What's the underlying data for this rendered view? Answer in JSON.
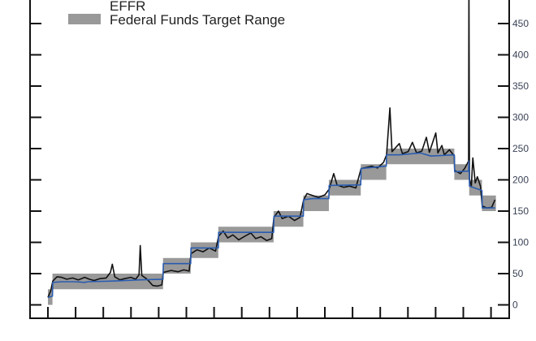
{
  "chart_data": {
    "type": "line",
    "title": "",
    "xlabel": "",
    "ylabel": "",
    "ylim": [
      0,
      500
    ],
    "y_ticks": [
      "0",
      "50",
      "100",
      "150",
      "200",
      "250",
      "300",
      "350",
      "400",
      "450"
    ],
    "y_axis_side": "right",
    "x_range": [
      "2015-12-01",
      "2019-12-15"
    ],
    "x_tick_interval": "quarterly",
    "grid": false,
    "legend": {
      "placement": "top-left",
      "entries": [
        "EFFR",
        "Federal Funds Target Range"
      ]
    },
    "target_range": [
      {
        "start": "2015-12-01",
        "end": "2015-12-16",
        "lower": 0,
        "upper": 25
      },
      {
        "start": "2015-12-16",
        "end": "2016-12-14",
        "lower": 25,
        "upper": 50
      },
      {
        "start": "2016-12-14",
        "end": "2017-03-15",
        "lower": 50,
        "upper": 75
      },
      {
        "start": "2017-03-15",
        "end": "2017-06-14",
        "lower": 75,
        "upper": 100
      },
      {
        "start": "2017-06-14",
        "end": "2017-12-13",
        "lower": 100,
        "upper": 125
      },
      {
        "start": "2017-12-13",
        "end": "2018-03-21",
        "lower": 125,
        "upper": 150
      },
      {
        "start": "2018-03-21",
        "end": "2018-06-13",
        "lower": 150,
        "upper": 175
      },
      {
        "start": "2018-06-13",
        "end": "2018-09-26",
        "lower": 175,
        "upper": 200
      },
      {
        "start": "2018-09-26",
        "end": "2018-12-19",
        "lower": 200,
        "upper": 225
      },
      {
        "start": "2018-12-19",
        "end": "2019-07-31",
        "lower": 225,
        "upper": 250
      },
      {
        "start": "2019-07-31",
        "end": "2019-09-18",
        "lower": 200,
        "upper": 225
      },
      {
        "start": "2019-09-18",
        "end": "2019-10-30",
        "lower": 175,
        "upper": 200
      },
      {
        "start": "2019-10-30",
        "end": "2019-12-15",
        "lower": 150,
        "upper": 175
      }
    ],
    "series": [
      {
        "color": "#111111",
        "points": [
          [
            "2015-12-01",
            12
          ],
          [
            "2015-12-10",
            22
          ],
          [
            "2015-12-17",
            38
          ],
          [
            "2015-12-31",
            45
          ],
          [
            "2016-01-15",
            44
          ],
          [
            "2016-02-01",
            41
          ],
          [
            "2016-02-20",
            43
          ],
          [
            "2016-03-10",
            40
          ],
          [
            "2016-03-31",
            44
          ],
          [
            "2016-04-15",
            41
          ],
          [
            "2016-05-01",
            39
          ],
          [
            "2016-05-20",
            42
          ],
          [
            "2016-06-10",
            43
          ],
          [
            "2016-06-24",
            52
          ],
          [
            "2016-06-30",
            65
          ],
          [
            "2016-07-08",
            45
          ],
          [
            "2016-07-25",
            40
          ],
          [
            "2016-08-10",
            42
          ],
          [
            "2016-08-30",
            44
          ],
          [
            "2016-09-15",
            41
          ],
          [
            "2016-09-26",
            48
          ],
          [
            "2016-09-30",
            95
          ],
          [
            "2016-10-05",
            47
          ],
          [
            "2016-10-20",
            42
          ],
          [
            "2016-11-01",
            36
          ],
          [
            "2016-11-10",
            31
          ],
          [
            "2016-11-25",
            30
          ],
          [
            "2016-12-10",
            32
          ],
          [
            "2016-12-15",
            52
          ],
          [
            "2017-01-10",
            55
          ],
          [
            "2017-02-01",
            53
          ],
          [
            "2017-02-20",
            56
          ],
          [
            "2017-03-10",
            54
          ],
          [
            "2017-03-16",
            82
          ],
          [
            "2017-04-05",
            88
          ],
          [
            "2017-04-25",
            85
          ],
          [
            "2017-05-15",
            91
          ],
          [
            "2017-06-05",
            86
          ],
          [
            "2017-06-15",
            110
          ],
          [
            "2017-06-30",
            118
          ],
          [
            "2017-07-15",
            107
          ],
          [
            "2017-08-01",
            112
          ],
          [
            "2017-08-20",
            104
          ],
          [
            "2017-09-10",
            110
          ],
          [
            "2017-09-29",
            115
          ],
          [
            "2017-10-15",
            106
          ],
          [
            "2017-11-01",
            109
          ],
          [
            "2017-11-20",
            103
          ],
          [
            "2017-12-07",
            106
          ],
          [
            "2017-12-14",
            140
          ],
          [
            "2017-12-29",
            150
          ],
          [
            "2018-01-10",
            138
          ],
          [
            "2018-01-31",
            142
          ],
          [
            "2018-02-20",
            135
          ],
          [
            "2018-03-10",
            140
          ],
          [
            "2018-03-22",
            168
          ],
          [
            "2018-04-02",
            178
          ],
          [
            "2018-04-20",
            175
          ],
          [
            "2018-05-10",
            172
          ],
          [
            "2018-05-31",
            176
          ],
          [
            "2018-06-14",
            185
          ],
          [
            "2018-06-29",
            210
          ],
          [
            "2018-07-10",
            192
          ],
          [
            "2018-08-01",
            188
          ],
          [
            "2018-08-20",
            190
          ],
          [
            "2018-09-10",
            187
          ],
          [
            "2018-09-27",
            218
          ],
          [
            "2018-10-15",
            220
          ],
          [
            "2018-11-01",
            222
          ],
          [
            "2018-11-20",
            219
          ],
          [
            "2018-12-10",
            228
          ],
          [
            "2018-12-20",
            240
          ],
          [
            "2018-12-31",
            315
          ],
          [
            "2019-01-07",
            245
          ],
          [
            "2019-01-31",
            258
          ],
          [
            "2019-02-10",
            242
          ],
          [
            "2019-03-01",
            245
          ],
          [
            "2019-03-15",
            260
          ],
          [
            "2019-03-29",
            243
          ],
          [
            "2019-04-15",
            246
          ],
          [
            "2019-04-30",
            268
          ],
          [
            "2019-05-10",
            244
          ],
          [
            "2019-05-31",
            275
          ],
          [
            "2019-06-07",
            243
          ],
          [
            "2019-06-20",
            255
          ],
          [
            "2019-06-28",
            240
          ],
          [
            "2019-07-15",
            248
          ],
          [
            "2019-07-31",
            238
          ],
          [
            "2019-08-01",
            215
          ],
          [
            "2019-08-20",
            210
          ],
          [
            "2019-09-03",
            218
          ],
          [
            "2019-09-16",
            230
          ],
          [
            "2019-09-17",
            525
          ],
          [
            "2019-09-19",
            200
          ],
          [
            "2019-09-25",
            190
          ],
          [
            "2019-09-30",
            235
          ],
          [
            "2019-10-08",
            195
          ],
          [
            "2019-10-15",
            205
          ],
          [
            "2019-10-25",
            190
          ],
          [
            "2019-10-31",
            158
          ],
          [
            "2019-11-15",
            155
          ],
          [
            "2019-12-01",
            156
          ],
          [
            "2019-12-12",
            168
          ]
        ]
      },
      {
        "name": "EFFR",
        "color": "#2a5cb0",
        "points": [
          [
            "2015-12-01",
            12
          ],
          [
            "2015-12-16",
            14
          ],
          [
            "2015-12-17",
            36
          ],
          [
            "2016-01-15",
            37
          ],
          [
            "2016-03-01",
            37
          ],
          [
            "2016-03-31",
            36
          ],
          [
            "2016-04-10",
            37
          ],
          [
            "2016-06-30",
            38
          ],
          [
            "2016-09-30",
            40
          ],
          [
            "2016-12-14",
            41
          ],
          [
            "2016-12-15",
            66
          ],
          [
            "2017-03-15",
            66
          ],
          [
            "2017-03-16",
            91
          ],
          [
            "2017-06-14",
            91
          ],
          [
            "2017-06-15",
            116
          ],
          [
            "2017-12-13",
            116
          ],
          [
            "2017-12-14",
            142
          ],
          [
            "2018-03-21",
            142
          ],
          [
            "2018-03-22",
            168
          ],
          [
            "2018-04-20",
            170
          ],
          [
            "2018-06-13",
            170
          ],
          [
            "2018-06-14",
            191
          ],
          [
            "2018-09-26",
            192
          ],
          [
            "2018-09-27",
            218
          ],
          [
            "2018-12-19",
            222
          ],
          [
            "2018-12-20",
            240
          ],
          [
            "2019-02-01",
            240
          ],
          [
            "2019-04-10",
            243
          ],
          [
            "2019-05-15",
            238
          ],
          [
            "2019-07-31",
            240
          ],
          [
            "2019-08-01",
            213
          ],
          [
            "2019-09-16",
            214
          ],
          [
            "2019-09-17",
            230
          ],
          [
            "2019-09-19",
            190
          ],
          [
            "2019-10-30",
            183
          ],
          [
            "2019-10-31",
            155
          ],
          [
            "2019-12-12",
            155
          ]
        ]
      }
    ]
  }
}
